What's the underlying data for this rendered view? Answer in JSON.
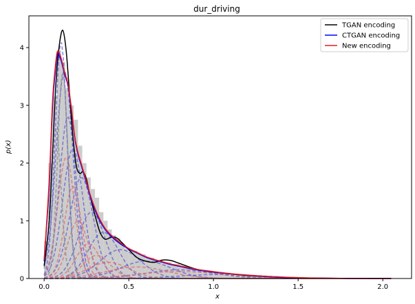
{
  "chart_data": {
    "type": "line",
    "title": "dur_driving",
    "xlabel": "x",
    "ylabel": "p(x)",
    "xlim": [
      -0.09,
      2.17
    ],
    "ylim": [
      0,
      4.55
    ],
    "xticks": [
      0.0,
      0.5,
      1.0,
      1.5,
      2.0
    ],
    "xtick_labels": [
      "0.0",
      "0.5",
      "1.0",
      "1.5",
      "2.0"
    ],
    "yticks": [
      0,
      1,
      2,
      3,
      4
    ],
    "ytick_labels": [
      "0",
      "1",
      "2",
      "3",
      "4"
    ],
    "grid": false,
    "legend_position": "top-right",
    "histogram": {
      "color": "#cccccc",
      "bin_edges": [
        0.0,
        0.025,
        0.05,
        0.075,
        0.1,
        0.125,
        0.15,
        0.175,
        0.2,
        0.225,
        0.25,
        0.275,
        0.3,
        0.325,
        0.35,
        0.375,
        0.4,
        0.425,
        0.45,
        0.475,
        0.5,
        0.55,
        0.6,
        0.65,
        0.7,
        0.75,
        0.8,
        0.85,
        0.9,
        0.95,
        1.0,
        1.1,
        1.2,
        1.3,
        1.4,
        1.5,
        1.6,
        1.8,
        2.05
      ],
      "heights": [
        0.65,
        2.0,
        3.15,
        3.95,
        3.75,
        3.3,
        3.0,
        2.75,
        2.3,
        2.0,
        1.75,
        1.55,
        1.4,
        1.15,
        1.0,
        0.85,
        0.75,
        0.7,
        0.6,
        0.52,
        0.48,
        0.42,
        0.36,
        0.32,
        0.28,
        0.25,
        0.22,
        0.18,
        0.15,
        0.12,
        0.1,
        0.07,
        0.05,
        0.04,
        0.03,
        0.02,
        0.01,
        0.005
      ]
    },
    "series": [
      {
        "name": "TGAN encoding",
        "color": "#000000",
        "x": [
          0.0,
          0.03,
          0.05,
          0.07,
          0.09,
          0.11,
          0.13,
          0.15,
          0.17,
          0.19,
          0.21,
          0.23,
          0.25,
          0.27,
          0.3,
          0.33,
          0.36,
          0.4,
          0.43,
          0.46,
          0.5,
          0.55,
          0.6,
          0.65,
          0.7,
          0.75,
          0.8,
          0.9,
          1.0,
          1.1,
          1.2,
          1.3,
          1.4,
          1.5,
          1.6,
          1.7,
          1.8,
          1.9,
          2.0,
          2.05
        ],
        "y": [
          0.22,
          1.0,
          2.2,
          3.4,
          4.05,
          4.3,
          3.95,
          3.2,
          2.45,
          1.95,
          1.82,
          1.85,
          1.72,
          1.45,
          1.1,
          0.8,
          0.68,
          0.72,
          0.7,
          0.62,
          0.5,
          0.36,
          0.3,
          0.28,
          0.32,
          0.31,
          0.26,
          0.16,
          0.11,
          0.08,
          0.05,
          0.035,
          0.02,
          0.01,
          0.006,
          0.003,
          0.002,
          0.001,
          0.0,
          0.0
        ]
      },
      {
        "name": "CTGAN encoding",
        "color": "#0000ff",
        "x": [
          0.0,
          0.03,
          0.05,
          0.07,
          0.08,
          0.09,
          0.1,
          0.12,
          0.14,
          0.16,
          0.18,
          0.2,
          0.22,
          0.25,
          0.28,
          0.32,
          0.36,
          0.4,
          0.45,
          0.5,
          0.55,
          0.6,
          0.65,
          0.7,
          0.75,
          0.8,
          0.9,
          1.0,
          1.1,
          1.2,
          1.3,
          1.4,
          1.5,
          1.6,
          1.7,
          1.8,
          1.9,
          2.0,
          2.05
        ],
        "y": [
          0.3,
          1.6,
          3.0,
          3.7,
          3.9,
          3.85,
          3.78,
          3.55,
          3.35,
          2.95,
          2.45,
          2.15,
          1.95,
          1.65,
          1.35,
          1.05,
          0.85,
          0.72,
          0.6,
          0.51,
          0.44,
          0.37,
          0.32,
          0.28,
          0.24,
          0.21,
          0.15,
          0.11,
          0.08,
          0.055,
          0.035,
          0.02,
          0.012,
          0.007,
          0.004,
          0.002,
          0.001,
          0.0,
          0.0
        ]
      },
      {
        "name": "New encoding",
        "color": "#e41a1c",
        "x": [
          0.0,
          0.03,
          0.05,
          0.07,
          0.08,
          0.09,
          0.1,
          0.12,
          0.14,
          0.16,
          0.18,
          0.2,
          0.22,
          0.25,
          0.28,
          0.32,
          0.36,
          0.4,
          0.45,
          0.5,
          0.55,
          0.6,
          0.65,
          0.7,
          0.75,
          0.8,
          0.9,
          1.0,
          1.1,
          1.2,
          1.3,
          1.4,
          1.5,
          1.6,
          1.7,
          1.8,
          1.9,
          2.0,
          2.05
        ],
        "y": [
          0.32,
          1.7,
          3.1,
          3.78,
          3.94,
          3.9,
          3.82,
          3.58,
          3.38,
          2.98,
          2.48,
          2.18,
          1.98,
          1.68,
          1.38,
          1.08,
          0.87,
          0.74,
          0.62,
          0.52,
          0.45,
          0.38,
          0.33,
          0.29,
          0.25,
          0.22,
          0.16,
          0.12,
          0.085,
          0.06,
          0.04,
          0.025,
          0.015,
          0.008,
          0.004,
          0.002,
          0.001,
          0.0,
          0.0
        ]
      }
    ],
    "components": [
      {
        "family": "blue",
        "mu": 0.1,
        "sigma": 0.035,
        "peak": 4.1
      },
      {
        "family": "blue",
        "mu": 0.12,
        "sigma": 0.05,
        "peak": 3.6
      },
      {
        "family": "blue",
        "mu": 0.14,
        "sigma": 0.05,
        "peak": 2.8
      },
      {
        "family": "blue",
        "mu": 0.17,
        "sigma": 0.06,
        "peak": 2.25
      },
      {
        "family": "blue",
        "mu": 0.22,
        "sigma": 0.07,
        "peak": 1.75
      },
      {
        "family": "blue",
        "mu": 0.28,
        "sigma": 0.08,
        "peak": 1.15
      },
      {
        "family": "blue",
        "mu": 0.35,
        "sigma": 0.09,
        "peak": 0.8
      },
      {
        "family": "blue",
        "mu": 0.45,
        "sigma": 0.12,
        "peak": 0.5
      },
      {
        "family": "blue",
        "mu": 0.6,
        "sigma": 0.15,
        "peak": 0.3
      },
      {
        "family": "blue",
        "mu": 0.8,
        "sigma": 0.2,
        "peak": 0.15
      },
      {
        "family": "blue",
        "mu": 1.05,
        "sigma": 0.25,
        "peak": 0.07
      },
      {
        "family": "red",
        "mu": 0.13,
        "sigma": 0.05,
        "peak": 2.1
      },
      {
        "family": "red",
        "mu": 0.17,
        "sigma": 0.05,
        "peak": 1.6
      },
      {
        "family": "red",
        "mu": 0.2,
        "sigma": 0.06,
        "peak": 1.0
      },
      {
        "family": "red",
        "mu": 0.26,
        "sigma": 0.07,
        "peak": 0.6
      },
      {
        "family": "red",
        "mu": 0.31,
        "sigma": 0.08,
        "peak": 0.4
      },
      {
        "family": "red",
        "mu": 0.38,
        "sigma": 0.12,
        "peak": 0.28
      },
      {
        "family": "red",
        "mu": 0.55,
        "sigma": 0.18,
        "peak": 0.2
      },
      {
        "family": "red",
        "mu": 0.8,
        "sigma": 0.25,
        "peak": 0.12
      },
      {
        "family": "black",
        "mu": 0.11,
        "sigma": 0.03,
        "peak": 3.6
      },
      {
        "family": "black",
        "mu": 0.07,
        "sigma": 0.03,
        "peak": 2.6
      }
    ]
  }
}
